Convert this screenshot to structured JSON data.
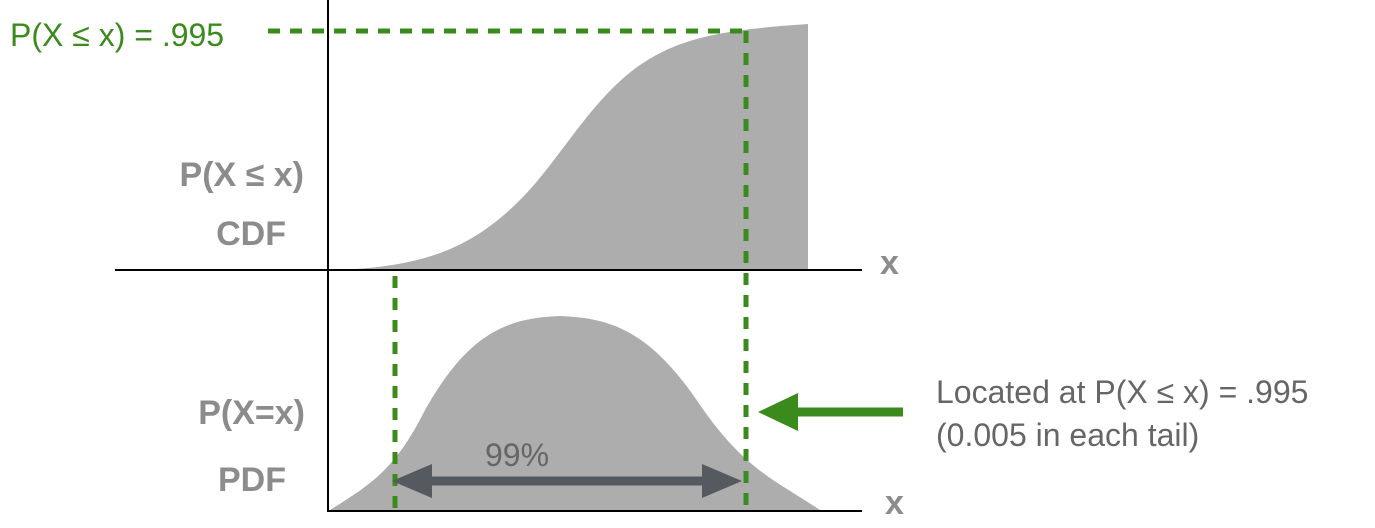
{
  "cdf": {
    "threshold_label": "P(X ≤ x) = .995",
    "ylabel_line1": "P(X ≤ x)",
    "ylabel_line2": "CDF",
    "xlabel": "x"
  },
  "pdf": {
    "ylabel_line1": "P(X=x)",
    "ylabel_line2": "PDF",
    "xlabel": "x",
    "interval_label": "99%"
  },
  "annotation": {
    "line1": "Located at P(X ≤ x) = .995",
    "line2": "(0.005 in each tail)"
  },
  "colors": {
    "curve_fill": "#adadad",
    "accent_green": "#3a8a1c",
    "label_gray": "#8c8c8c",
    "text_gray": "#666666",
    "arrow_dark": "#555a60"
  }
}
